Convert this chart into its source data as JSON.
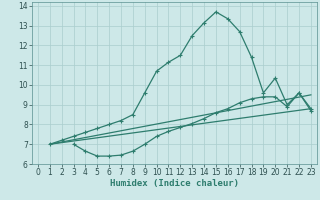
{
  "bg_color": "#cde8e8",
  "grid_color": "#aacece",
  "line_color": "#2e7d6e",
  "line_width": 0.9,
  "marker": "+",
  "marker_size": 3.5,
  "marker_lw": 0.8,
  "xlim": [
    -0.5,
    23.5
  ],
  "ylim": [
    6,
    14.2
  ],
  "xticks": [
    0,
    1,
    2,
    3,
    4,
    5,
    6,
    7,
    8,
    9,
    10,
    11,
    12,
    13,
    14,
    15,
    16,
    17,
    18,
    19,
    20,
    21,
    22,
    23
  ],
  "yticks": [
    6,
    7,
    8,
    9,
    10,
    11,
    12,
    13,
    14
  ],
  "xlabel": "Humidex (Indice chaleur)",
  "xlabel_fontsize": 6.5,
  "tick_fontsize": 5.5,
  "line1_x": [
    1,
    2,
    3,
    4,
    5,
    6,
    7,
    8,
    9,
    10,
    11,
    12,
    13,
    14,
    15,
    16,
    17,
    18,
    19,
    20,
    21,
    22,
    23
  ],
  "line1_y": [
    7.0,
    7.2,
    7.4,
    7.6,
    7.8,
    8.0,
    8.2,
    8.5,
    9.6,
    10.7,
    11.15,
    11.5,
    12.5,
    13.15,
    13.7,
    13.35,
    12.7,
    11.4,
    9.6,
    10.35,
    9.0,
    9.6,
    8.8
  ],
  "line2_x": [
    3,
    4,
    5,
    6,
    7,
    8,
    9,
    10,
    11,
    12,
    13,
    14,
    15,
    16,
    17,
    18,
    19,
    20,
    21,
    22,
    23
  ],
  "line2_y": [
    7.0,
    6.65,
    6.4,
    6.4,
    6.45,
    6.65,
    7.0,
    7.4,
    7.65,
    7.85,
    8.05,
    8.3,
    8.6,
    8.8,
    9.1,
    9.3,
    9.4,
    9.4,
    8.9,
    9.6,
    8.7
  ],
  "line3_x": [
    1,
    23
  ],
  "line3_y": [
    7.0,
    8.8
  ],
  "line4_x": [
    1,
    23
  ],
  "line4_y": [
    7.0,
    9.5
  ]
}
